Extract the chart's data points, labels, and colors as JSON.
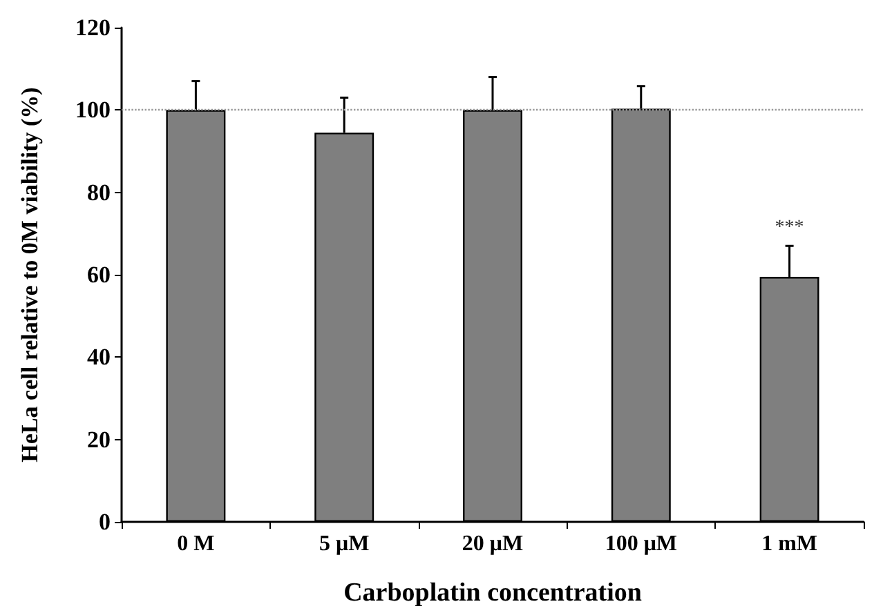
{
  "chart_data": {
    "type": "bar",
    "xlabel": "Carboplatin concentration",
    "ylabel": "HeLa cell relative to 0M viability (%)",
    "categories": [
      "0 M",
      "5 μM",
      "20 μM",
      "100 μM",
      "1 mM"
    ],
    "values": [
      100,
      94.5,
      100,
      100.3,
      59.5
    ],
    "errors": [
      7,
      8.5,
      8,
      5.5,
      7.5
    ],
    "color": "#7f7f7f",
    "ylim": [
      0,
      120
    ],
    "yticks": [
      0,
      20,
      40,
      60,
      80,
      100,
      120
    ],
    "ref_lines": [
      {
        "axis": "y",
        "value": 100,
        "color": "#999999",
        "line_style": "dotted"
      }
    ],
    "annotations": [
      {
        "text": "***",
        "x": "1 mM",
        "y": 67
      }
    ],
    "grid": false
  }
}
